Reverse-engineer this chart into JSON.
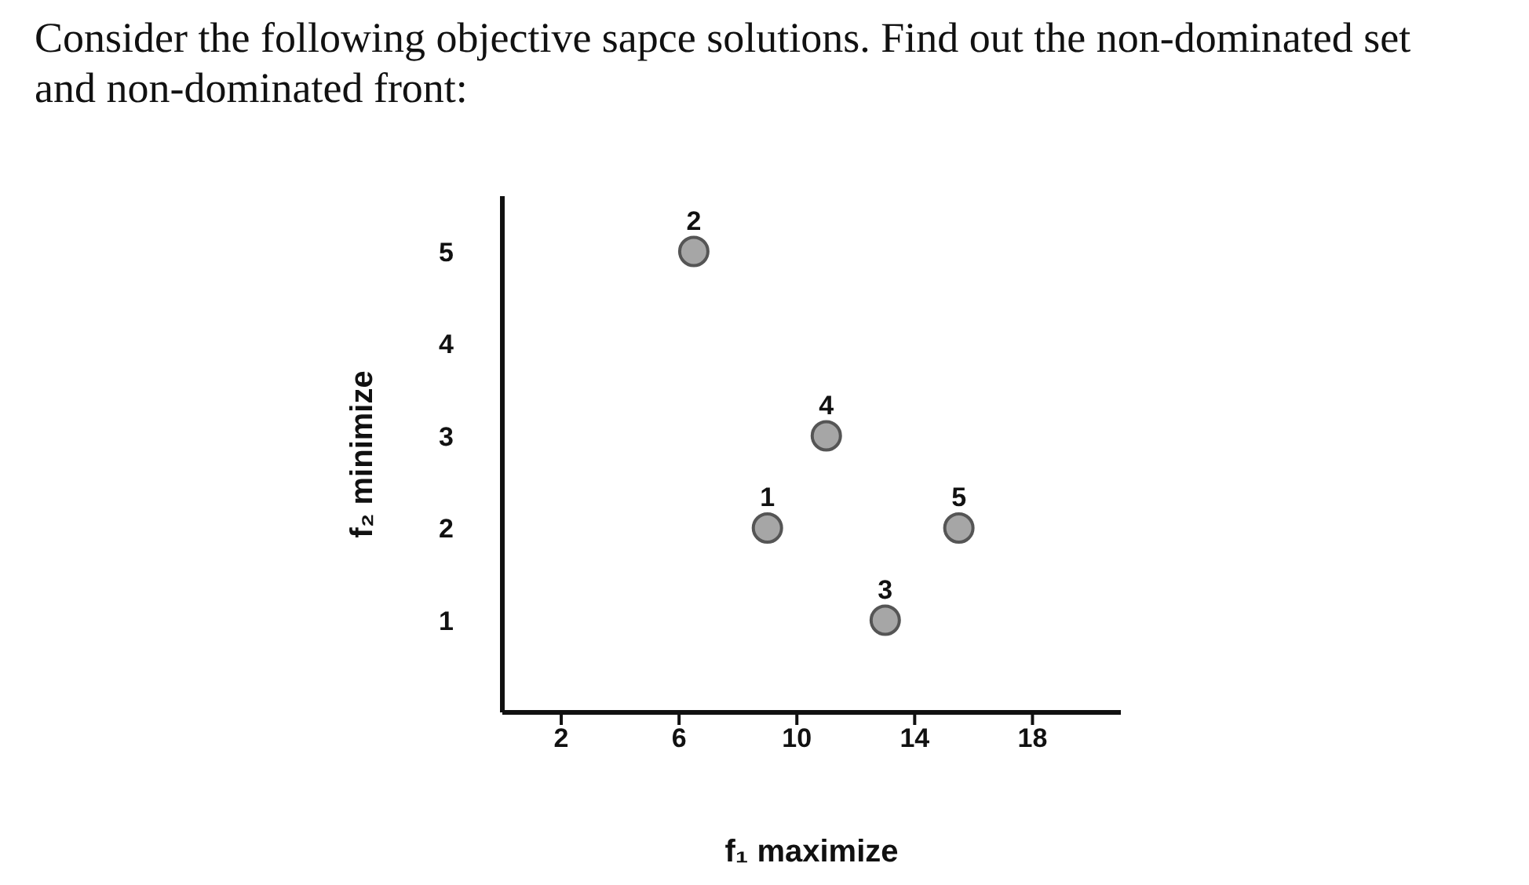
{
  "chart_data": {
    "type": "scatter",
    "title": "Consider the following objective sapce solutions. Find out the non-dominated set and non-dominated front:",
    "xlabel": "f₁ maximize",
    "ylabel": "f₂ minimize",
    "x": [
      9,
      6.5,
      13,
      11,
      15.5
    ],
    "series": [
      {
        "color": "#a6a6a6",
        "values": [
          2,
          5,
          1,
          3,
          2
        ]
      }
    ],
    "annotations": [
      {
        "text": "1",
        "x": 9,
        "y": 2
      },
      {
        "text": "2",
        "x": 6.5,
        "y": 5
      },
      {
        "text": "3",
        "x": 13,
        "y": 1
      },
      {
        "text": "4",
        "x": 11,
        "y": 3
      },
      {
        "text": "5",
        "x": 15.5,
        "y": 2
      }
    ],
    "xlim": [
      0,
      21
    ],
    "xticks": [
      2,
      6,
      10,
      14,
      18
    ],
    "ylim": [
      0,
      5.6
    ],
    "yticks": [
      1,
      2,
      3,
      4,
      5
    ],
    "marker": "circle",
    "grid": false,
    "legend": false
  }
}
